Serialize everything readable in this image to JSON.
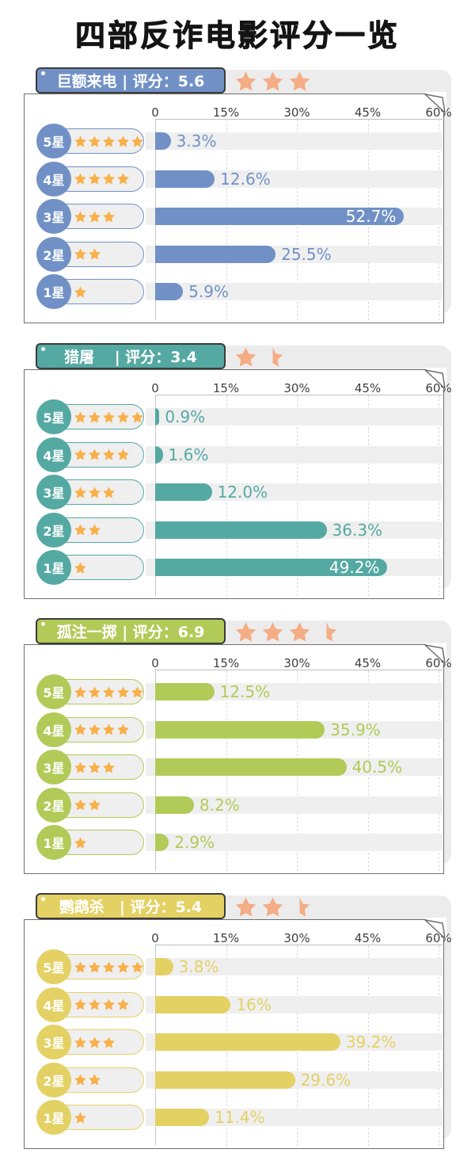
{
  "page_title": "四部反诈电影评分一览",
  "axis": {
    "ticks": [
      "0",
      "15%",
      "30%",
      "45%",
      "60%"
    ],
    "min": 0,
    "max": 60,
    "unit": "percent",
    "grid": "dashed-vertical"
  },
  "row_labels": [
    "5星",
    "4星",
    "3星",
    "2星",
    "1星"
  ],
  "row_star_counts": [
    5,
    4,
    3,
    2,
    1
  ],
  "colors": {
    "blue": "#7191c6",
    "teal": "#55a9a3",
    "green": "#b2ca57",
    "yellow": "#e4d164",
    "header_star": "#f4ad84",
    "pill_star": "#f8b04a",
    "track_gray": "#efefef",
    "sheet_gray": "#ececec",
    "card_border": "#6f6f6f",
    "inside_label_text": "#ffffff"
  },
  "chart_data": [
    {
      "type": "bar",
      "movie": "巨额来电",
      "score": "5.6",
      "header": "巨额来电 | 评分：5.6",
      "rating_stars": {
        "full": 3,
        "half": 0
      },
      "color": "#7191c6",
      "categories": [
        "5星",
        "4星",
        "3星",
        "2星",
        "1星"
      ],
      "values": [
        3.3,
        12.6,
        52.7,
        25.5,
        5.9
      ],
      "value_labels": [
        "3.3%",
        "12.6%",
        "52.7%",
        "25.5%",
        "5.9%"
      ],
      "label_inside": [
        false,
        false,
        true,
        false,
        false
      ],
      "xlim": [
        0,
        60
      ]
    },
    {
      "type": "bar",
      "movie": "猎屠",
      "score": "3.4",
      "header": "猎屠　 | 评分：3.4",
      "rating_stars": {
        "full": 1,
        "half": 1
      },
      "color": "#55a9a3",
      "categories": [
        "5星",
        "4星",
        "3星",
        "2星",
        "1星"
      ],
      "values": [
        0.9,
        1.6,
        12.0,
        36.3,
        49.2
      ],
      "value_labels": [
        "0.9%",
        "1.6%",
        "12.0%",
        "36.3%",
        "49.2%"
      ],
      "label_inside": [
        false,
        false,
        false,
        false,
        true
      ],
      "xlim": [
        0,
        60
      ]
    },
    {
      "type": "bar",
      "movie": "孤注一掷",
      "score": "6.9",
      "header": "孤注一掷 | 评分：6.9",
      "rating_stars": {
        "full": 3,
        "half": 1
      },
      "color": "#b2ca57",
      "categories": [
        "5星",
        "4星",
        "3星",
        "2星",
        "1星"
      ],
      "values": [
        12.5,
        35.9,
        40.5,
        8.2,
        2.9
      ],
      "value_labels": [
        "12.5%",
        "35.9%",
        "40.5%",
        "8.2%",
        "2.9%"
      ],
      "label_inside": [
        false,
        false,
        false,
        false,
        false
      ],
      "xlim": [
        0,
        60
      ]
    },
    {
      "type": "bar",
      "movie": "鹦鹉杀",
      "score": "5.4",
      "header": "鹦鹉杀　| 评分：5.4",
      "rating_stars": {
        "full": 2,
        "half": 1
      },
      "color": "#e4d164",
      "categories": [
        "5星",
        "4星",
        "3星",
        "2星",
        "1星"
      ],
      "values": [
        3.8,
        16,
        39.2,
        29.6,
        11.4
      ],
      "value_labels": [
        "3.8%",
        "16%",
        "39.2%",
        "29.6%",
        "11.4%"
      ],
      "label_inside": [
        false,
        false,
        false,
        false,
        false
      ],
      "xlim": [
        0,
        60
      ]
    }
  ]
}
